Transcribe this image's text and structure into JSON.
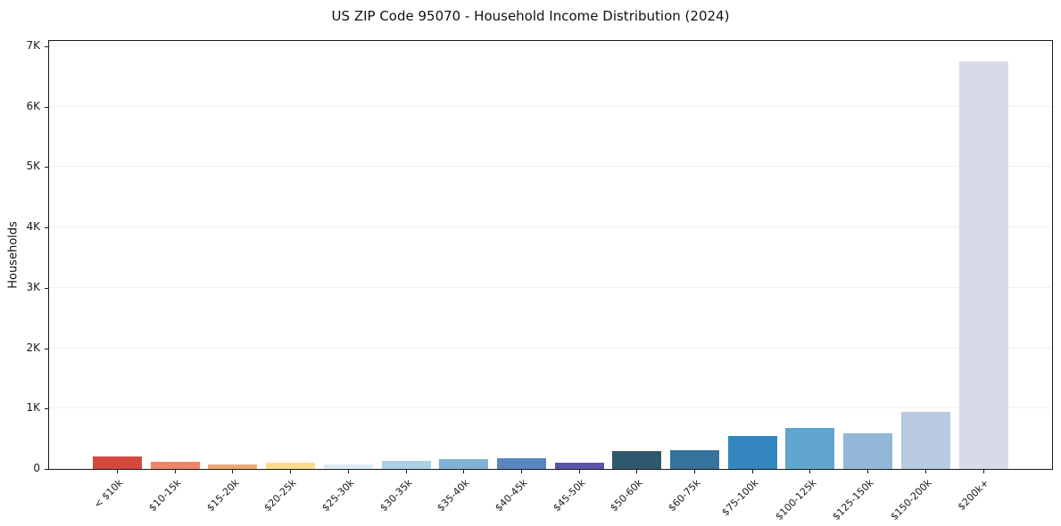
{
  "page": {
    "title": "US ZIP Code 95070 - Household Income Distribution (2024)"
  },
  "chart_data": {
    "type": "bar",
    "title": "US ZIP Code 95070 - Household Income Distribution (2024)",
    "xlabel": "",
    "ylabel": "Households",
    "categories": [
      "< $10k",
      "$10-15k",
      "$15-20k",
      "$20-25k",
      "$25-30k",
      "$30-35k",
      "$35-40k",
      "$40-45k",
      "$45-50k",
      "$50-60k",
      "$60-75k",
      "$75-100k",
      "$100-125k",
      "$125-150k",
      "$150-200k",
      "$200k+"
    ],
    "values": [
      210,
      120,
      70,
      100,
      75,
      130,
      165,
      180,
      110,
      290,
      315,
      550,
      675,
      590,
      940,
      6750
    ],
    "bar_colors": [
      "#d4493e",
      "#ee8367",
      "#f0a96e",
      "#fbdb8e",
      "#dcebf3",
      "#abd0e4",
      "#81b1d5",
      "#5a86c0",
      "#5a54a8",
      "#30586d",
      "#36739d",
      "#3486bf",
      "#60a5cd",
      "#92b7d7",
      "#b8c9e1",
      "#d8dae8"
    ],
    "ylim": [
      0,
      7085
    ],
    "yticks": {
      "values": [
        0,
        1000,
        2000,
        3000,
        4000,
        5000,
        6000,
        7000
      ],
      "labels": [
        "0",
        "1K",
        "2K",
        "3K",
        "4K",
        "5K",
        "6K",
        "7K"
      ]
    },
    "grid": "horizontal",
    "legend": "none"
  },
  "style": {
    "axis_color": "#1a1a1a",
    "grid_color": "#eef0f3",
    "background": "#ffffff",
    "text_color": "#111111"
  }
}
